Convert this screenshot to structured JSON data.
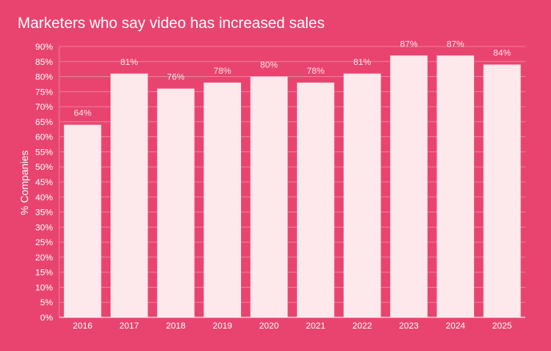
{
  "chart_data": {
    "type": "bar",
    "title": "Marketers who say video has increased sales",
    "xlabel": "",
    "ylabel": "% Companies",
    "categories": [
      "2016",
      "2017",
      "2018",
      "2019",
      "2020",
      "2021",
      "2022",
      "2023",
      "2024",
      "2025"
    ],
    "values": [
      64,
      81,
      76,
      78,
      80,
      78,
      81,
      87,
      87,
      84
    ],
    "data_labels": [
      "64%",
      "81%",
      "76%",
      "78%",
      "80%",
      "78%",
      "81%",
      "87%",
      "87%",
      "84%"
    ],
    "ylim": [
      0,
      90
    ],
    "ytick_step": 5,
    "ytick_suffix": "%",
    "grid": true,
    "legend": "none",
    "colors": {
      "background": "#e8446f",
      "bar": "#fde8ec",
      "grid": "#f17d9a",
      "text": "#ffffff"
    }
  }
}
